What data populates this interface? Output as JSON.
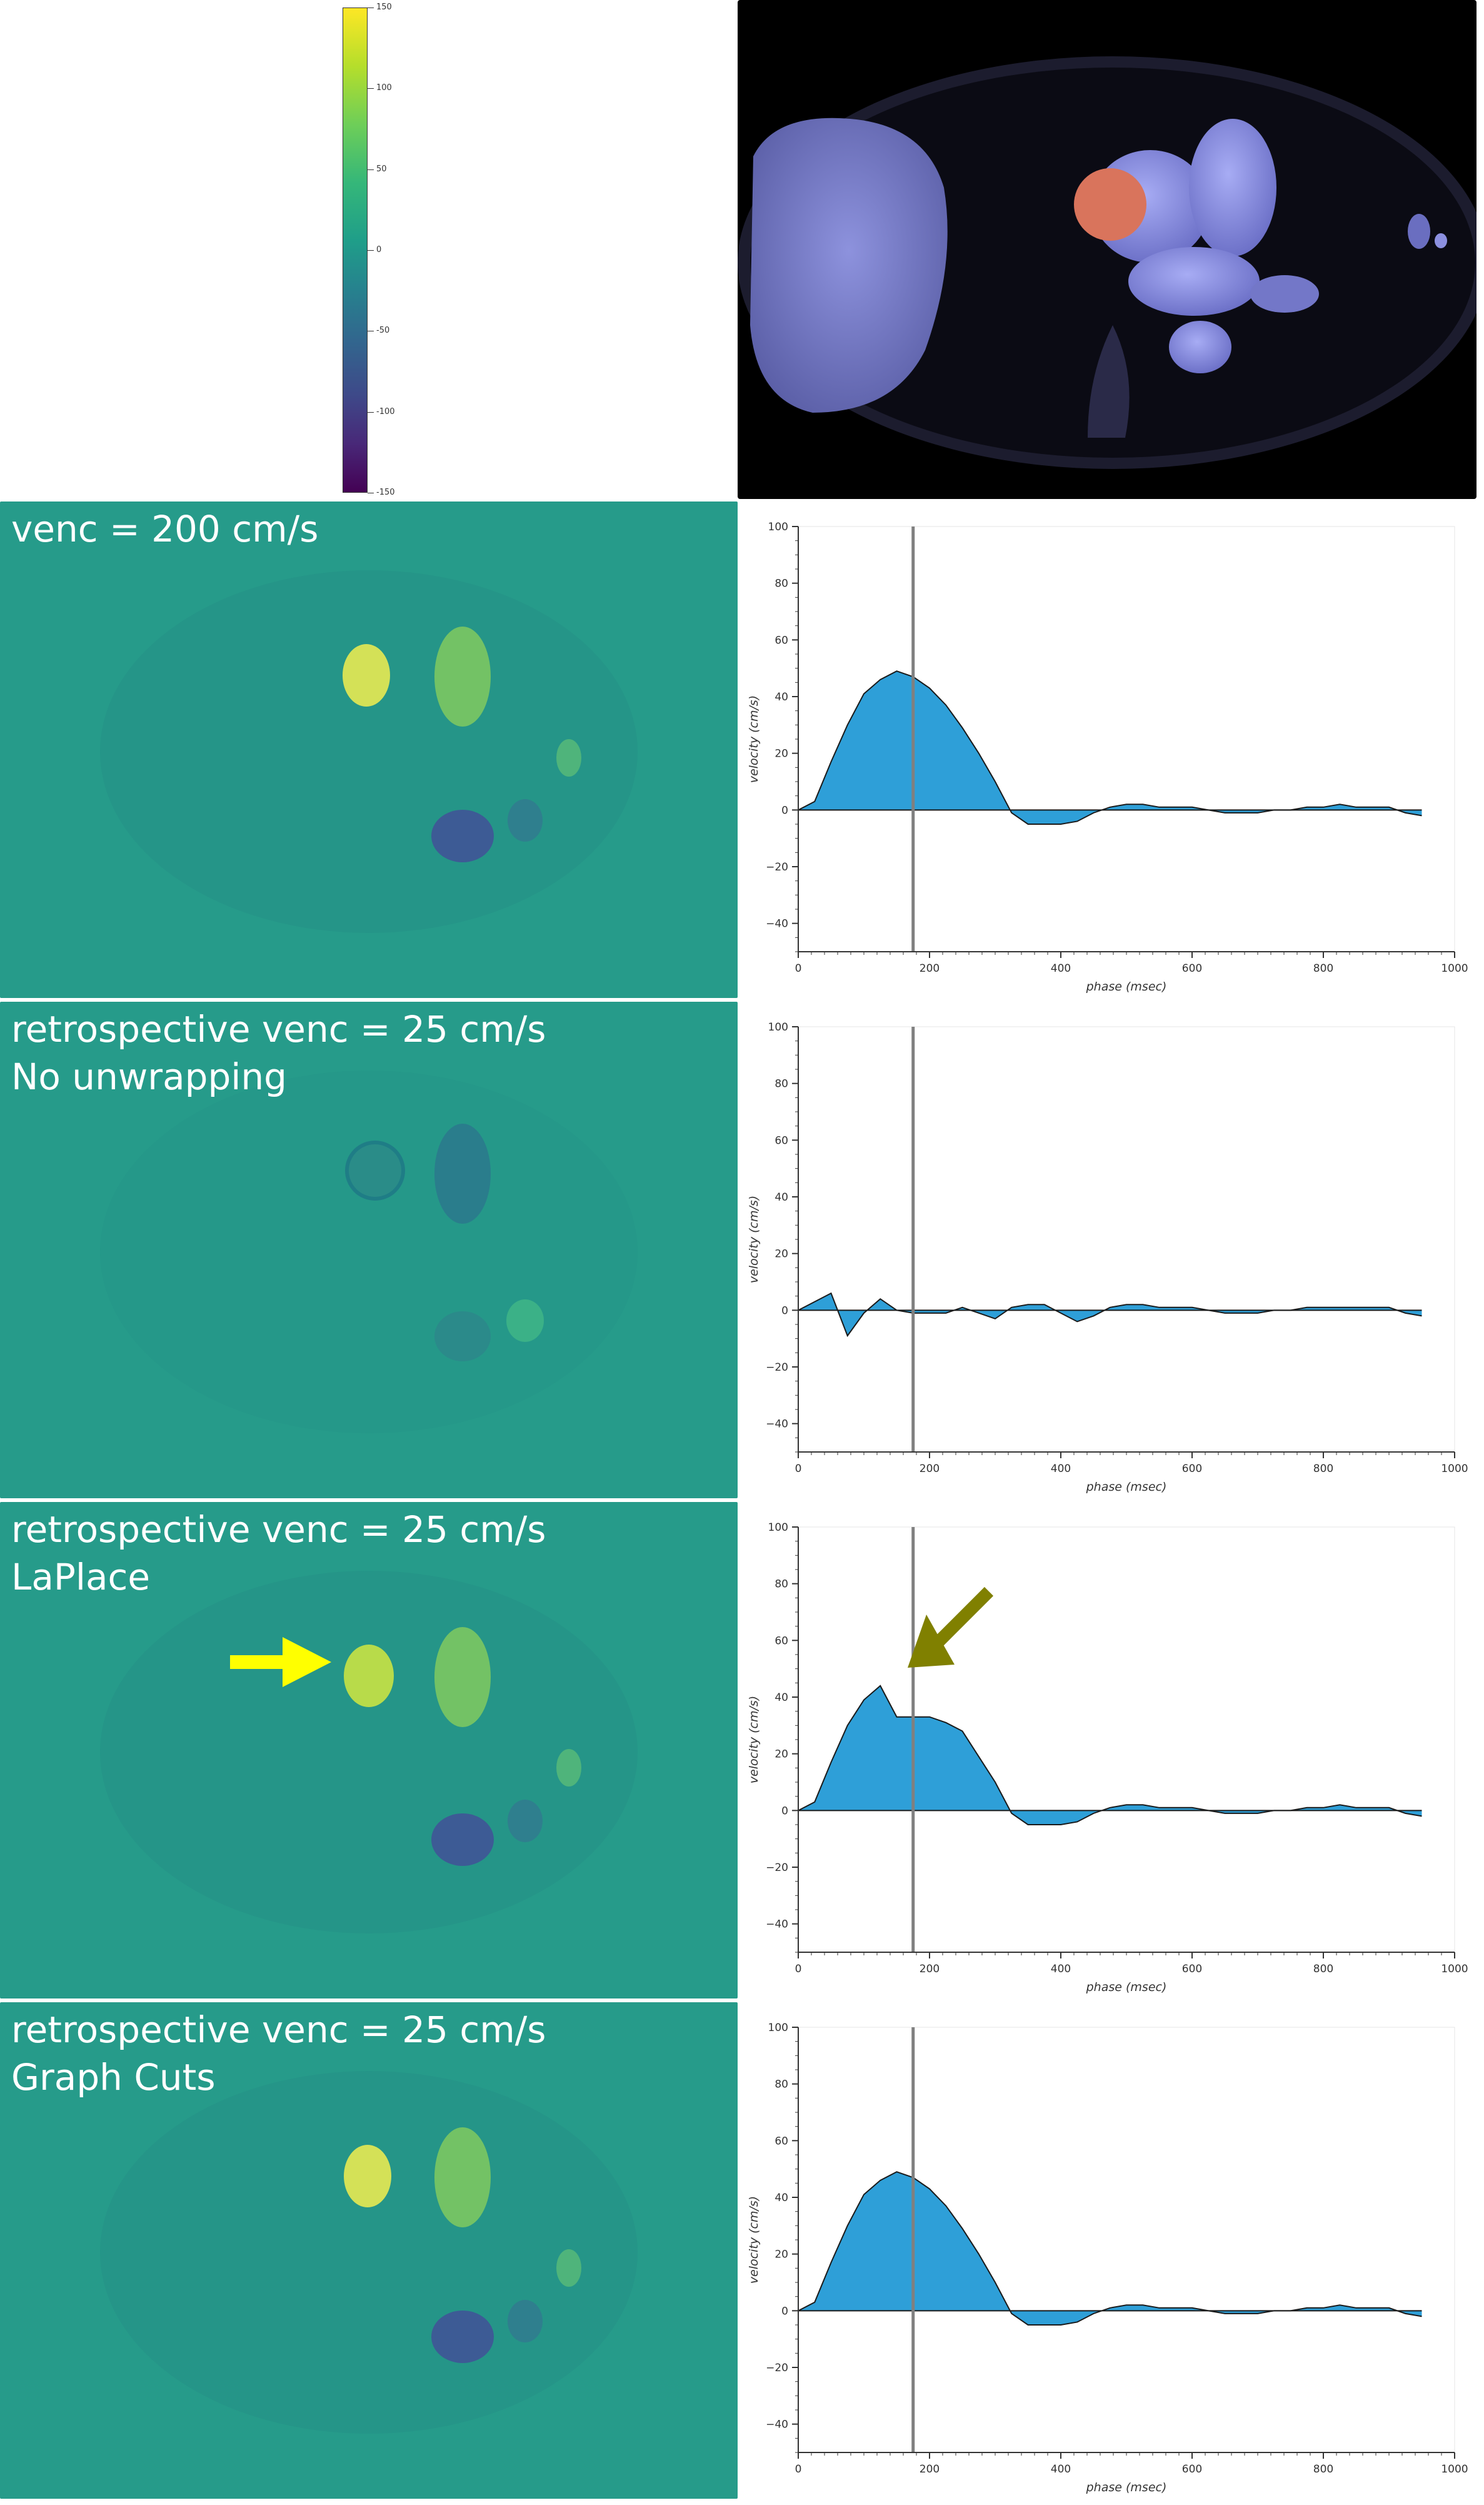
{
  "colorbar": {
    "ticks": [
      "150",
      "100",
      "50",
      "0",
      "-50",
      "-100",
      "-150"
    ],
    "colormap": "viridis"
  },
  "panels": [
    {
      "label_line1": "venc = 200 cm/s",
      "label_line2": ""
    },
    {
      "label_line1": "retrospective venc = 25 cm/s",
      "label_line2": "No unwrapping"
    },
    {
      "label_line1": "retrospective venc = 25 cm/s",
      "label_line2": "LaPlace"
    },
    {
      "label_line1": "retrospective venc = 25 cm/s",
      "label_line2": "Graph Cuts"
    }
  ],
  "colors": {
    "map_background": "#269b8a",
    "fill": "#2e9fd8",
    "cursor": "#808080",
    "yellow_arrow": "#ffff00",
    "olive_arrow": "#808000",
    "roi": "#d9745c"
  },
  "chart_data": [
    {
      "type": "area",
      "xlabel": "phase (msec)",
      "ylabel": "velocity (cm/s)",
      "xlim": [
        0,
        1000
      ],
      "ylim": [
        -50,
        100
      ],
      "xticks": [
        "0",
        "200",
        "400",
        "600",
        "800",
        "1000"
      ],
      "yticks": [
        "100",
        "80",
        "60",
        "40",
        "20",
        "0",
        "−20",
        "−40"
      ],
      "cursor_x": 175,
      "x": [
        0,
        25,
        50,
        75,
        100,
        125,
        150,
        175,
        200,
        225,
        250,
        275,
        300,
        325,
        350,
        375,
        400,
        425,
        450,
        475,
        500,
        525,
        550,
        575,
        600,
        625,
        650,
        675,
        700,
        725,
        750,
        775,
        800,
        825,
        850,
        875,
        900,
        925,
        950
      ],
      "y": [
        0,
        3,
        17,
        30,
        41,
        46,
        49,
        47,
        43,
        37,
        29,
        20,
        10,
        -1,
        -5,
        -5,
        -5,
        -4,
        -1,
        1,
        2,
        2,
        1,
        1,
        1,
        0,
        -1,
        -1,
        -1,
        0,
        0,
        1,
        1,
        2,
        1,
        1,
        1,
        -1,
        -2
      ]
    },
    {
      "type": "area",
      "xlabel": "phase (msec)",
      "ylabel": "velocity (cm/s)",
      "xlim": [
        0,
        1000
      ],
      "ylim": [
        -50,
        100
      ],
      "xticks": [
        "0",
        "200",
        "400",
        "600",
        "800",
        "1000"
      ],
      "yticks": [
        "100",
        "80",
        "60",
        "40",
        "20",
        "0",
        "−20",
        "−40"
      ],
      "cursor_x": 175,
      "x": [
        0,
        25,
        50,
        75,
        100,
        125,
        150,
        175,
        200,
        225,
        250,
        275,
        300,
        325,
        350,
        375,
        400,
        425,
        450,
        475,
        500,
        525,
        550,
        575,
        600,
        625,
        650,
        675,
        700,
        725,
        750,
        775,
        800,
        825,
        850,
        875,
        900,
        925,
        950
      ],
      "y": [
        0,
        3,
        6,
        -9,
        -1,
        4,
        0,
        -1,
        -1,
        -1,
        1,
        -1,
        -3,
        1,
        2,
        2,
        -1,
        -4,
        -2,
        1,
        2,
        2,
        1,
        1,
        1,
        0,
        -1,
        -1,
        -1,
        0,
        0,
        1,
        1,
        1,
        1,
        1,
        1,
        -1,
        -2
      ]
    },
    {
      "type": "area",
      "xlabel": "phase (msec)",
      "ylabel": "velocity (cm/s)",
      "xlim": [
        0,
        1000
      ],
      "ylim": [
        -50,
        100
      ],
      "xticks": [
        "0",
        "200",
        "400",
        "600",
        "800",
        "1000"
      ],
      "yticks": [
        "100",
        "80",
        "60",
        "40",
        "20",
        "0",
        "−20",
        "−40"
      ],
      "cursor_x": 175,
      "x": [
        0,
        25,
        50,
        75,
        100,
        125,
        150,
        175,
        200,
        225,
        250,
        275,
        300,
        325,
        350,
        375,
        400,
        425,
        450,
        475,
        500,
        525,
        550,
        575,
        600,
        625,
        650,
        675,
        700,
        725,
        750,
        775,
        800,
        825,
        850,
        875,
        900,
        925,
        950
      ],
      "y": [
        0,
        3,
        17,
        30,
        39,
        44,
        33,
        33,
        33,
        31,
        28,
        19,
        10,
        -1,
        -5,
        -5,
        -5,
        -4,
        -1,
        1,
        2,
        2,
        1,
        1,
        1,
        0,
        -1,
        -1,
        -1,
        0,
        0,
        1,
        1,
        2,
        1,
        1,
        1,
        -1,
        -2
      ]
    },
    {
      "type": "area",
      "xlabel": "phase (msec)",
      "ylabel": "velocity (cm/s)",
      "xlim": [
        0,
        1000
      ],
      "ylim": [
        -50,
        100
      ],
      "xticks": [
        "0",
        "200",
        "400",
        "600",
        "800",
        "1000"
      ],
      "yticks": [
        "100",
        "80",
        "60",
        "40",
        "20",
        "0",
        "−20",
        "−40"
      ],
      "cursor_x": 175,
      "x": [
        0,
        25,
        50,
        75,
        100,
        125,
        150,
        175,
        200,
        225,
        250,
        275,
        300,
        325,
        350,
        375,
        400,
        425,
        450,
        475,
        500,
        525,
        550,
        575,
        600,
        625,
        650,
        675,
        700,
        725,
        750,
        775,
        800,
        825,
        850,
        875,
        900,
        925,
        950
      ],
      "y": [
        0,
        3,
        17,
        30,
        41,
        46,
        49,
        47,
        43,
        37,
        29,
        20,
        10,
        -1,
        -5,
        -5,
        -5,
        -4,
        -1,
        1,
        2,
        2,
        1,
        1,
        1,
        0,
        -1,
        -1,
        -1,
        0,
        0,
        1,
        1,
        2,
        1,
        1,
        1,
        -1,
        -2
      ]
    }
  ]
}
